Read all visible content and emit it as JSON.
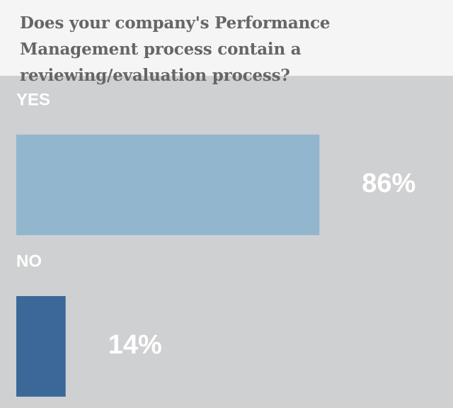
{
  "chart_data": {
    "type": "bar",
    "orientation": "horizontal",
    "title": "Does your company's Performance Management process contain a reviewing/evaluation process?",
    "categories": [
      "YES",
      "NO"
    ],
    "values": [
      86,
      14
    ],
    "value_labels": [
      "86%",
      "14%"
    ],
    "colors": [
      "#93b6cf",
      "#3b6898"
    ],
    "xlim": [
      0,
      100
    ]
  }
}
